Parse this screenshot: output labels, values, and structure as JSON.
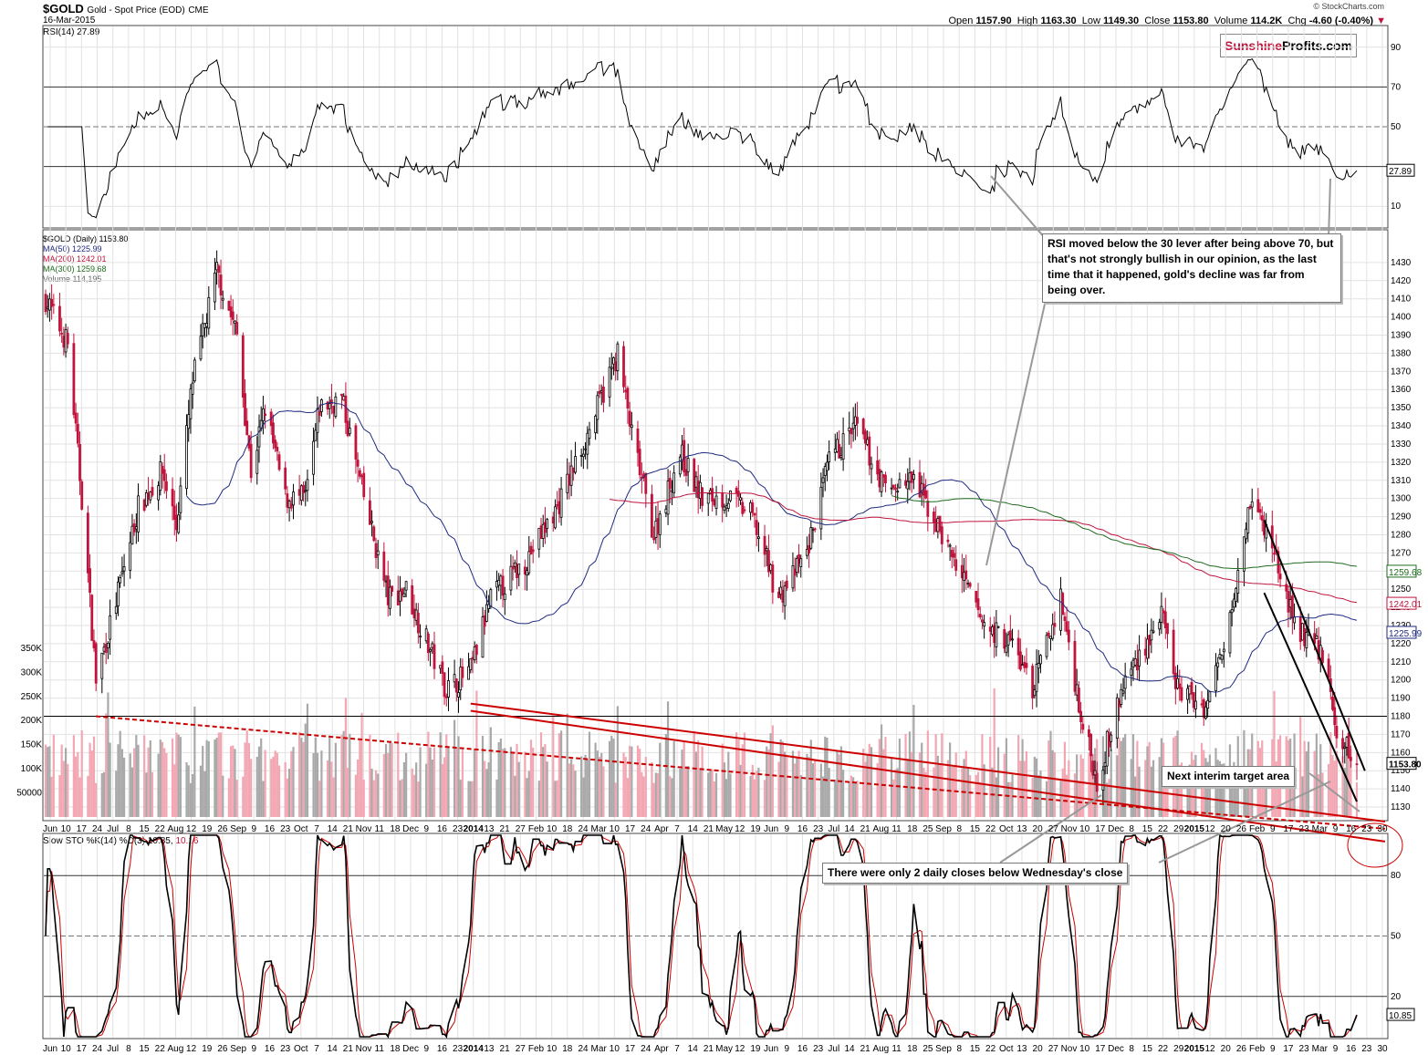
{
  "header": {
    "symbol": "$GOLD",
    "description": "Gold - Spot Price (EOD)",
    "exchange": "CME",
    "date": "16-Mar-2015",
    "open_label": "Open",
    "open": "1157.90",
    "high_label": "High",
    "high": "1163.30",
    "low_label": "Low",
    "low": "1149.30",
    "close_label": "Close",
    "close": "1153.80",
    "volume_label": "Volume",
    "volume": "114.2K",
    "chg_label": "Chg",
    "chg": "-4.60 (-0.40%)",
    "credit": "© StockCharts.com"
  },
  "logo": {
    "part1": "Sunshine",
    "part2": "Profits.com"
  },
  "rsi_panel": {
    "label": "RSI(14) 27.89",
    "levels": [
      90,
      70,
      50,
      30,
      10
    ],
    "tick_labels": [
      "90",
      "70",
      "50",
      "10"
    ],
    "current": "27.89"
  },
  "price_panel": {
    "legend": {
      "main": "$GOLD (Daily) 1153.80",
      "ma50": "MA(50) 1225.99",
      "ma200": "MA(200) 1242.01",
      "ma300": "MA(300) 1259.68",
      "volume": "Volume 114,195"
    },
    "price_ticks": [
      "1430",
      "1420",
      "1410",
      "1400",
      "1390",
      "1380",
      "1370",
      "1360",
      "1350",
      "1340",
      "1330",
      "1320",
      "1310",
      "1300",
      "1290",
      "1280",
      "1270",
      "1260",
      "1250",
      "1240",
      "1230",
      "1220",
      "1210",
      "1200",
      "1190",
      "1180",
      "1170",
      "1160",
      "1150",
      "1140",
      "1130"
    ],
    "volume_ticks": [
      "350K",
      "300K",
      "250K",
      "200K",
      "150K",
      "100K",
      "50000"
    ],
    "last_labels": {
      "ma300": "1259.68",
      "ma200": "1242.01",
      "ma50": "1225.99",
      "close": "1153.80"
    }
  },
  "sto_panel": {
    "label_k": "Slow STO %K(14) %D(3) 10.85,",
    "label_d": "10.16",
    "tick_labels": [
      "80",
      "50",
      "20"
    ],
    "current": "10.85"
  },
  "x_axis": {
    "labels": [
      "Jun",
      "10",
      "17",
      "24",
      "Jul",
      "8",
      "15",
      "22",
      "Aug",
      "12",
      "19",
      "26",
      "Sep",
      "9",
      "16",
      "23",
      "Oct",
      "7",
      "14",
      "21",
      "Nov",
      "11",
      "18",
      "Dec",
      "9",
      "16",
      "23",
      "2014",
      "13",
      "21",
      "27",
      "Feb",
      "10",
      "18",
      "24",
      "Mar",
      "10",
      "17",
      "24",
      "Apr",
      "7",
      "14",
      "21",
      "May",
      "12",
      "19",
      "Jun",
      "9",
      "16",
      "23",
      "Jul",
      "14",
      "21",
      "Aug",
      "11",
      "18",
      "25",
      "Sep",
      "8",
      "15",
      "22",
      "Oct",
      "13",
      "20",
      "27",
      "Nov",
      "10",
      "17",
      "Dec",
      "8",
      "15",
      "22",
      "29",
      "2015",
      "12",
      "20",
      "26",
      "Feb",
      "9",
      "17",
      "23",
      "Mar",
      "9",
      "16",
      "23",
      "30"
    ]
  },
  "annotations": {
    "rsi_note": "RSI moved below the 30 lever after being above 70, but that's not strongly bullish in our opinion, as the last time that it happened, gold's decline was far from being over.",
    "target_note": "Next interim target area",
    "closes_note": "There were only 2 daily closes below Wednesday's close"
  },
  "colors": {
    "up": "#000000",
    "down": "#c0143c",
    "ma50": "#1f2a80",
    "ma200": "#c0143c",
    "ma300": "#1e6b1e",
    "vol_up": "#a9a9a9",
    "vol_down": "#f2a7b3",
    "trend": "#cc0000"
  },
  "chart_data": {
    "type": "candlestick",
    "title": "$GOLD Gold - Spot Price (EOD) CME",
    "ylim": [
      1125,
      1440
    ],
    "price_path": [
      {
        "date": "2013-06-03",
        "close": 1410
      },
      {
        "date": "2013-06-14",
        "close": 1385
      },
      {
        "date": "2013-06-21",
        "close": 1300
      },
      {
        "date": "2013-06-28",
        "close": 1200
      },
      {
        "date": "2013-07-05",
        "close": 1230
      },
      {
        "date": "2013-07-19",
        "close": 1295
      },
      {
        "date": "2013-07-31",
        "close": 1315
      },
      {
        "date": "2013-08-07",
        "close": 1285
      },
      {
        "date": "2013-08-15",
        "close": 1365
      },
      {
        "date": "2013-08-27",
        "close": 1425
      },
      {
        "date": "2013-09-06",
        "close": 1390
      },
      {
        "date": "2013-09-13",
        "close": 1315
      },
      {
        "date": "2013-09-20",
        "close": 1350
      },
      {
        "date": "2013-09-30",
        "close": 1300
      },
      {
        "date": "2013-10-10",
        "close": 1300
      },
      {
        "date": "2013-10-17",
        "close": 1350
      },
      {
        "date": "2013-10-28",
        "close": 1355
      },
      {
        "date": "2013-11-07",
        "close": 1305
      },
      {
        "date": "2013-11-20",
        "close": 1245
      },
      {
        "date": "2013-11-29",
        "close": 1250
      },
      {
        "date": "2013-12-06",
        "close": 1230
      },
      {
        "date": "2013-12-19",
        "close": 1195
      },
      {
        "date": "2013-12-31",
        "close": 1205
      },
      {
        "date": "2014-01-10",
        "close": 1245
      },
      {
        "date": "2014-01-27",
        "close": 1265
      },
      {
        "date": "2014-02-12",
        "close": 1295
      },
      {
        "date": "2014-02-27",
        "close": 1335
      },
      {
        "date": "2014-03-14",
        "close": 1380
      },
      {
        "date": "2014-03-21",
        "close": 1335
      },
      {
        "date": "2014-04-01",
        "close": 1280
      },
      {
        "date": "2014-04-14",
        "close": 1325
      },
      {
        "date": "2014-04-25",
        "close": 1300
      },
      {
        "date": "2014-05-09",
        "close": 1300
      },
      {
        "date": "2014-05-20",
        "close": 1290
      },
      {
        "date": "2014-06-02",
        "close": 1245
      },
      {
        "date": "2014-06-16",
        "close": 1270
      },
      {
        "date": "2014-06-27",
        "close": 1320
      },
      {
        "date": "2014-07-10",
        "close": 1340
      },
      {
        "date": "2014-07-25",
        "close": 1305
      },
      {
        "date": "2014-08-08",
        "close": 1310
      },
      {
        "date": "2014-08-22",
        "close": 1280
      },
      {
        "date": "2014-09-12",
        "close": 1230
      },
      {
        "date": "2014-09-26",
        "close": 1220
      },
      {
        "date": "2014-10-06",
        "close": 1195
      },
      {
        "date": "2014-10-20",
        "close": 1245
      },
      {
        "date": "2014-10-31",
        "close": 1175
      },
      {
        "date": "2014-11-07",
        "close": 1145
      },
      {
        "date": "2014-11-21",
        "close": 1200
      },
      {
        "date": "2014-12-01",
        "close": 1220
      },
      {
        "date": "2014-12-09",
        "close": 1235
      },
      {
        "date": "2014-12-17",
        "close": 1195
      },
      {
        "date": "2014-12-31",
        "close": 1185
      },
      {
        "date": "2015-01-09",
        "close": 1220
      },
      {
        "date": "2015-01-22",
        "close": 1300
      },
      {
        "date": "2015-02-02",
        "close": 1275
      },
      {
        "date": "2015-02-13",
        "close": 1230
      },
      {
        "date": "2015-02-27",
        "close": 1215
      },
      {
        "date": "2015-03-06",
        "close": 1170
      },
      {
        "date": "2015-03-16",
        "close": 1153.8
      }
    ],
    "moving_averages": {
      "MA(50)": {
        "last": 1225.99
      },
      "MA(200)": {
        "last": 1242.01
      },
      "MA(300)": {
        "last": 1259.68
      }
    },
    "rsi_last": 27.89,
    "stochastic_last": {
      "k": 10.85,
      "d": 10.16
    },
    "horizontal_line": 1180
  }
}
